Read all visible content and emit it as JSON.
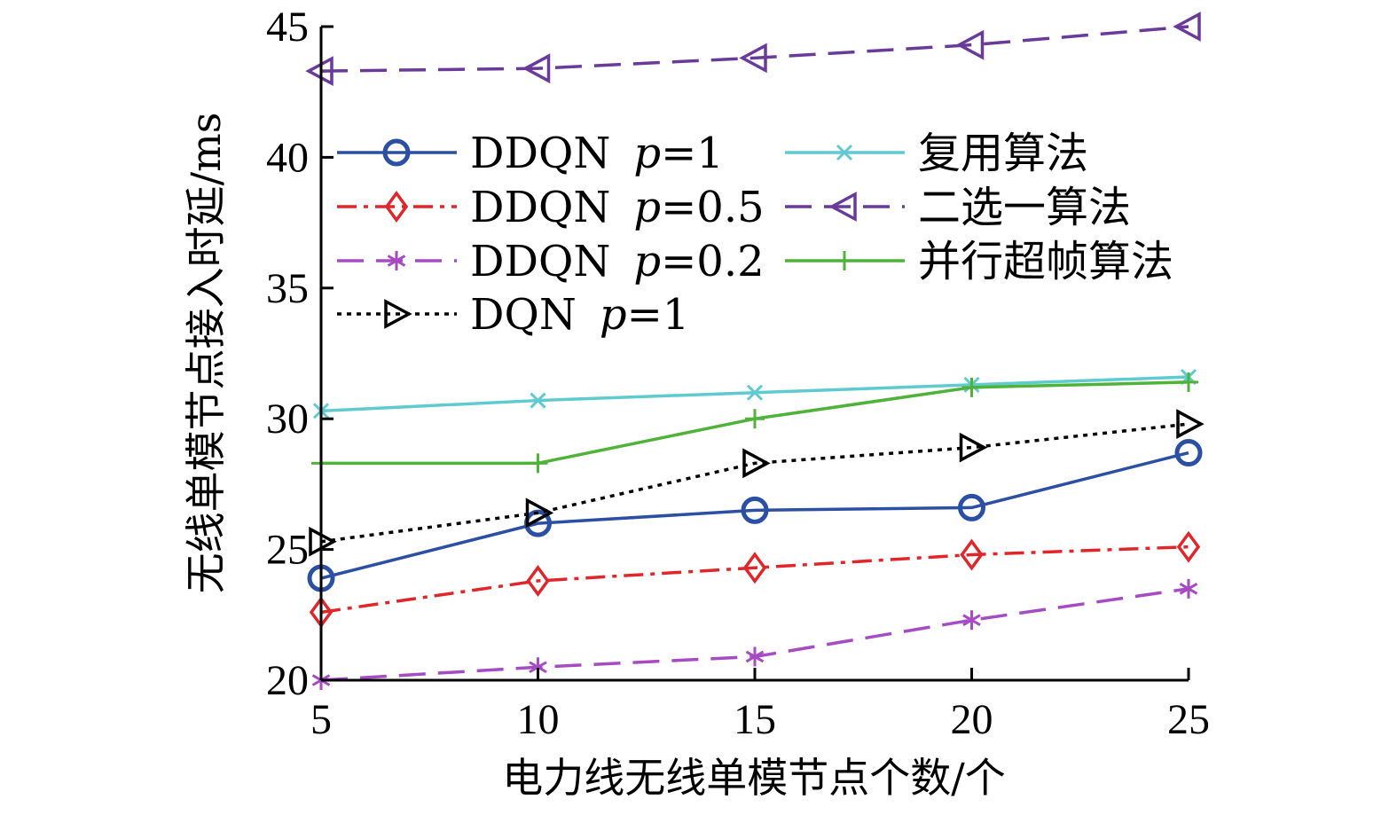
{
  "chart_data": {
    "type": "line",
    "title": "",
    "xlabel": "电力线无线单模节点个数/个",
    "ylabel": "无线单模节点接入时延/ms",
    "x": [
      5,
      10,
      15,
      20,
      25
    ],
    "xlim": [
      5,
      25
    ],
    "ylim": [
      20,
      45
    ],
    "xticks": [
      "5",
      "10",
      "15",
      "20",
      "25"
    ],
    "yticks": [
      "20",
      "25",
      "30",
      "35",
      "40",
      "45"
    ],
    "grid": false,
    "legend_position": "upper-left",
    "series": [
      {
        "name": "DDQN",
        "param": "p",
        "param_value": "=1",
        "values": [
          23.9,
          26.0,
          26.5,
          26.6,
          28.7
        ],
        "color": "#2b4fa3",
        "dash": "solid",
        "marker": "circle"
      },
      {
        "name": "DDQN",
        "param": "p",
        "param_value": "=0.5",
        "values": [
          22.6,
          23.8,
          24.3,
          24.8,
          25.1
        ],
        "color": "#e0262a",
        "dash": "dashdot",
        "marker": "diamond"
      },
      {
        "name": "DDQN",
        "param": "p",
        "param_value": "=0.2",
        "values": [
          20.0,
          20.5,
          20.9,
          22.3,
          23.5
        ],
        "color": "#a64bc3",
        "dash": "longdash",
        "marker": "asterisk"
      },
      {
        "name": "DQN",
        "param": "p",
        "param_value": "=1",
        "values": [
          25.3,
          26.4,
          28.3,
          28.9,
          29.8
        ],
        "color": "#000000",
        "dash": "dotted",
        "marker": "triangle-right"
      },
      {
        "name": "复用算法",
        "values": [
          30.3,
          30.7,
          31.0,
          31.3,
          31.6
        ],
        "color": "#5fcbd0",
        "dash": "solid",
        "marker": "x"
      },
      {
        "name": "二选一算法",
        "values": [
          43.3,
          43.4,
          43.8,
          44.3,
          45.0
        ],
        "color": "#6a3a9a",
        "dash": "longdash",
        "marker": "triangle-left"
      },
      {
        "name": "并行超帧算法",
        "values": [
          28.3,
          28.3,
          30.0,
          31.2,
          31.4
        ],
        "color": "#4fb33a",
        "dash": "solid",
        "marker": "plus"
      }
    ]
  }
}
